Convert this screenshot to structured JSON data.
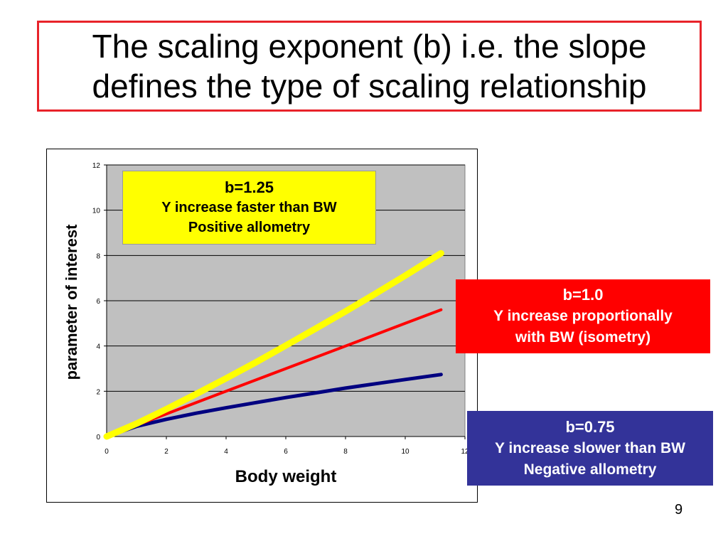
{
  "slide": {
    "title": "The scaling exponent (b) i.e. the slope\ndefines the type of scaling relationship",
    "page_number": "9",
    "accent_color": "#e8232a"
  },
  "callouts": {
    "positive": {
      "line1": "b=1.25",
      "line2": "Y increase faster than BW",
      "line3": "Positive allometry",
      "color": "#ffff00"
    },
    "isometry": {
      "line1": "b=1.0",
      "line2": "Y increase proportionally",
      "line3": "with BW (isometry)",
      "color": "#ff0000"
    },
    "negative": {
      "line1": "b=0.75",
      "line2": "Y increase slower than BW",
      "line3": "Negative allometry",
      "color": "#333399"
    }
  },
  "chart_data": {
    "type": "line",
    "xlabel": "Body weight",
    "ylabel": "parameter of interest",
    "xlim": [
      0,
      12
    ],
    "ylim": [
      0,
      12
    ],
    "x_ticks": [
      "0",
      "2",
      "4",
      "6",
      "8",
      "10",
      "12"
    ],
    "y_ticks": [
      "0",
      "2",
      "4",
      "6",
      "8",
      "10",
      "12"
    ],
    "grid": "horizontal",
    "plot_background": "#c0c0c0",
    "series": [
      {
        "key": "yellow",
        "color": "#ffff00",
        "x": [
          0,
          1,
          2,
          3,
          4,
          5,
          6,
          7,
          8,
          9,
          10,
          11.2
        ],
        "y": [
          0,
          0.57,
          1.21,
          1.88,
          2.57,
          3.28,
          4.02,
          4.77,
          5.53,
          6.31,
          7.11,
          8.1
        ]
      },
      {
        "key": "red",
        "color": "#ff0000",
        "x": [
          0,
          1,
          2,
          3,
          4,
          5,
          6,
          7,
          8,
          9,
          10,
          11.2
        ],
        "y": [
          0,
          0.5,
          1.0,
          1.5,
          2.0,
          2.5,
          3.0,
          3.5,
          4.0,
          4.5,
          5.0,
          5.6
        ]
      },
      {
        "key": "navy",
        "color": "#000080",
        "x": [
          0,
          1,
          2,
          3,
          4,
          5,
          6,
          7,
          8,
          9,
          10,
          11.2
        ],
        "y": [
          0,
          0.45,
          0.76,
          1.03,
          1.27,
          1.5,
          1.72,
          1.93,
          2.14,
          2.33,
          2.52,
          2.74
        ]
      }
    ]
  }
}
